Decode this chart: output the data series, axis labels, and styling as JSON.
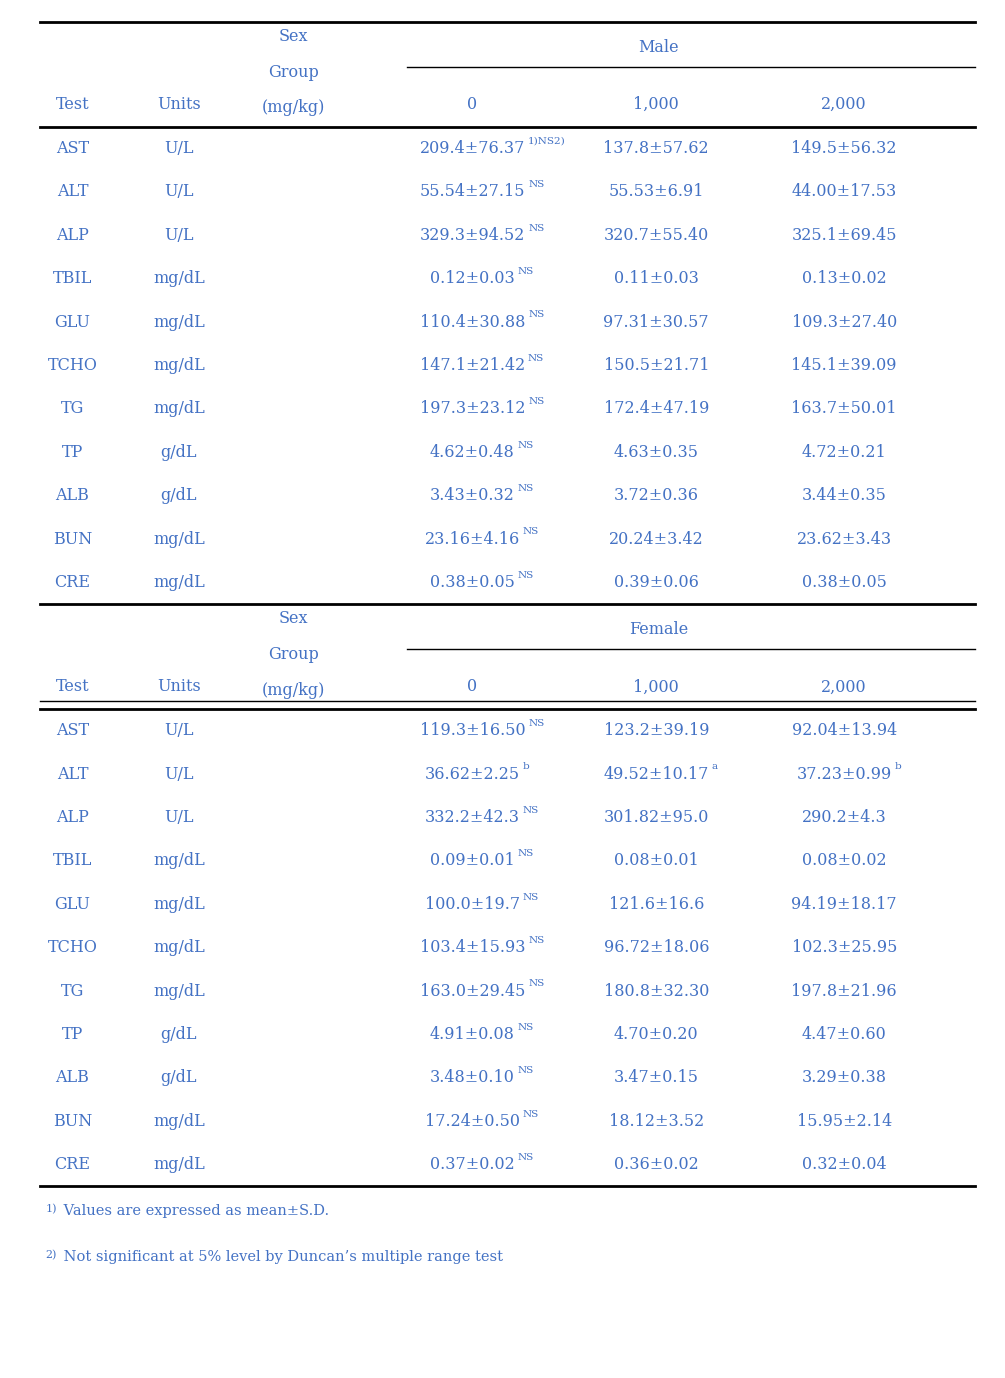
{
  "footnote1_sup": "1)",
  "footnote1_text": " Values are expressed as mean±S.D.",
  "footnote2_sup": "2)",
  "footnote2_text": " Not significant at 5% level by Duncan’s multiple range test",
  "male_data": [
    [
      "AST",
      "U/L",
      "209.4±76.37",
      "1)NS2)",
      "137.8±57.62",
      "",
      "149.5±56.32",
      ""
    ],
    [
      "ALT",
      "U/L",
      "55.54±27.15",
      "NS",
      "55.53±6.91",
      "",
      "44.00±17.53",
      ""
    ],
    [
      "ALP",
      "U/L",
      "329.3±94.52",
      "NS",
      "320.7±55.40",
      "",
      "325.1±69.45",
      ""
    ],
    [
      "TBIL",
      "mg/dL",
      "0.12±0.03",
      "NS",
      "0.11±0.03",
      "",
      "0.13±0.02",
      ""
    ],
    [
      "GLU",
      "mg/dL",
      "110.4±30.88",
      "NS",
      "97.31±30.57",
      "",
      "109.3±27.40",
      ""
    ],
    [
      "TCHO",
      "mg/dL",
      "147.1±21.42",
      "NS",
      "150.5±21.71",
      "",
      "145.1±39.09",
      ""
    ],
    [
      "TG",
      "mg/dL",
      "197.3±23.12",
      "NS",
      "172.4±47.19",
      "",
      "163.7±50.01",
      ""
    ],
    [
      "TP",
      "g/dL",
      "4.62±0.48",
      "NS",
      "4.63±0.35",
      "",
      "4.72±0.21",
      ""
    ],
    [
      "ALB",
      "g/dL",
      "3.43±0.32",
      "NS",
      "3.72±0.36",
      "",
      "3.44±0.35",
      ""
    ],
    [
      "BUN",
      "mg/dL",
      "23.16±4.16",
      "NS",
      "20.24±3.42",
      "",
      "23.62±3.43",
      ""
    ],
    [
      "CRE",
      "mg/dL",
      "0.38±0.05",
      "NS",
      "0.39±0.06",
      "",
      "0.38±0.05",
      ""
    ]
  ],
  "female_data": [
    [
      "AST",
      "U/L",
      "119.3±16.50",
      "NS",
      "123.2±39.19",
      "",
      "92.04±13.94",
      ""
    ],
    [
      "ALT",
      "U/L",
      "36.62±2.25",
      "b",
      "49.52±10.17",
      "a",
      "37.23±0.99",
      "b"
    ],
    [
      "ALP",
      "U/L",
      "332.2±42.3",
      "NS",
      "301.82±95.0",
      "",
      "290.2±4.3",
      ""
    ],
    [
      "TBIL",
      "mg/dL",
      "0.09±0.01",
      "NS",
      "0.08±0.01",
      "",
      "0.08±0.02",
      ""
    ],
    [
      "GLU",
      "mg/dL",
      "100.0±19.7",
      "NS",
      "121.6±16.6",
      "",
      "94.19±18.17",
      ""
    ],
    [
      "TCHO",
      "mg/dL",
      "103.4±15.93",
      "NS",
      "96.72±18.06",
      "",
      "102.3±25.95",
      ""
    ],
    [
      "TG",
      "mg/dL",
      "163.0±29.45",
      "NS",
      "180.8±32.30",
      "",
      "197.8±21.96",
      ""
    ],
    [
      "TP",
      "g/dL",
      "4.91±0.08",
      "NS",
      "4.70±0.20",
      "",
      "4.47±0.60",
      ""
    ],
    [
      "ALB",
      "g/dL",
      "3.48±0.10",
      "NS",
      "3.47±0.15",
      "",
      "3.29±0.38",
      ""
    ],
    [
      "BUN",
      "mg/dL",
      "17.24±0.50",
      "NS",
      "18.12±3.52",
      "",
      "15.95±2.14",
      ""
    ],
    [
      "CRE",
      "mg/dL",
      "0.37±0.02",
      "NS",
      "0.36±0.02",
      "",
      "0.32±0.04",
      ""
    ]
  ],
  "text_color": "#4472c4",
  "line_color": "#000000",
  "bg_color": "#ffffff",
  "fs": 11.5,
  "fs_sup": 7.5,
  "fs_fn": 10.5
}
